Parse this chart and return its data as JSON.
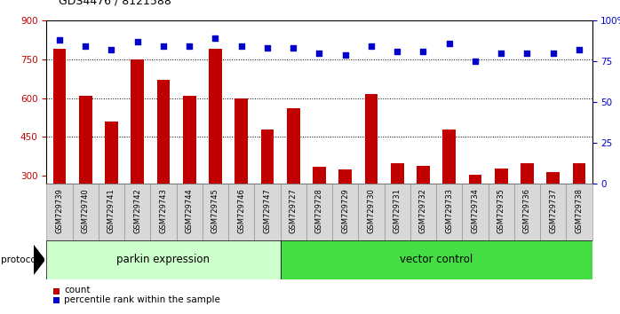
{
  "title": "GDS4476 / 8121588",
  "samples": [
    "GSM729739",
    "GSM729740",
    "GSM729741",
    "GSM729742",
    "GSM729743",
    "GSM729744",
    "GSM729745",
    "GSM729746",
    "GSM729747",
    "GSM729727",
    "GSM729728",
    "GSM729729",
    "GSM729730",
    "GSM729731",
    "GSM729732",
    "GSM729733",
    "GSM729734",
    "GSM729735",
    "GSM729736",
    "GSM729737",
    "GSM729738"
  ],
  "counts": [
    790,
    610,
    510,
    750,
    670,
    610,
    790,
    600,
    480,
    560,
    335,
    325,
    615,
    350,
    340,
    480,
    305,
    330,
    350,
    315,
    350
  ],
  "percentiles": [
    88,
    84,
    82,
    87,
    84,
    84,
    89,
    84,
    83,
    83,
    80,
    79,
    84,
    81,
    81,
    86,
    75,
    80,
    80,
    80,
    82
  ],
  "parkin_count": 9,
  "vector_count": 12,
  "parkin_label": "parkin expression",
  "vector_label": "vector control",
  "protocol_label": "protocol",
  "ylim_left": [
    270,
    900
  ],
  "ylim_right": [
    0,
    100
  ],
  "yticks_left": [
    300,
    450,
    600,
    750,
    900
  ],
  "yticks_right": [
    0,
    25,
    50,
    75,
    100
  ],
  "grid_values": [
    450,
    600,
    750
  ],
  "bar_color": "#C00000",
  "dot_color": "#0000CC",
  "parkin_bg": "#CCFFCC",
  "vector_bg": "#44DD44",
  "bar_width": 0.5,
  "legend_count_label": "count",
  "legend_pct_label": "percentile rank within the sample",
  "tick_bg": "#D8D8D8"
}
